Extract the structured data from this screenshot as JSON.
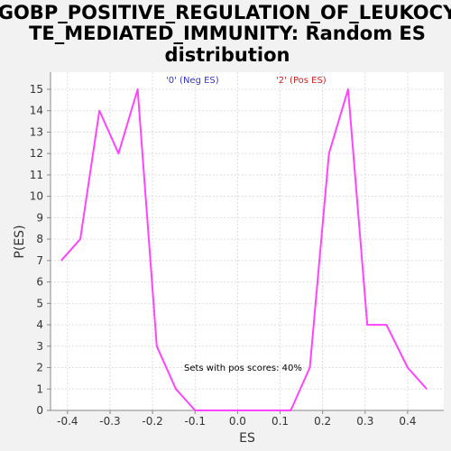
{
  "chart_data": {
    "type": "line",
    "title_lines": [
      "GOBP_POSITIVE_REGULATION_OF_LEUKOCY",
      "TE_MEDIATED_IMMUNITY: Random ES",
      "distribution"
    ],
    "xlabel": "ES",
    "ylabel": "P(ES)",
    "xlim": [
      -0.44,
      0.485
    ],
    "ylim": [
      0,
      15.8
    ],
    "x_ticks": [
      -0.4,
      -0.3,
      -0.2,
      -0.1,
      0.0,
      0.1,
      0.2,
      0.3,
      0.4
    ],
    "x_tick_labels": [
      "-0.4",
      "-0.3",
      "-0.2",
      "-0.1",
      "0.0",
      "0.1",
      "0.2",
      "0.3",
      "0.4"
    ],
    "y_ticks": [
      0,
      1,
      2,
      3,
      4,
      5,
      6,
      7,
      8,
      9,
      10,
      11,
      12,
      13,
      14,
      15
    ],
    "y_tick_labels": [
      "0",
      "1",
      "2",
      "3",
      "4",
      "5",
      "6",
      "7",
      "8",
      "9",
      "10",
      "11",
      "12",
      "13",
      "14",
      "15"
    ],
    "grid": true,
    "legend": [
      {
        "label": "'0' (Neg ES)",
        "color": "#3333cc"
      },
      {
        "label": "'2' (Pos ES)",
        "color": "#cc2222"
      }
    ],
    "annotation": "Sets with pos scores: 40%",
    "series": [
      {
        "color": "#ff44ff",
        "points": [
          [
            -0.415,
            7
          ],
          [
            -0.37,
            8
          ],
          [
            -0.325,
            14
          ],
          [
            -0.28,
            12
          ],
          [
            -0.235,
            15
          ],
          [
            -0.19,
            3
          ],
          [
            -0.145,
            1
          ],
          [
            -0.1,
            0
          ],
          [
            -0.055,
            0
          ],
          [
            -0.01,
            0
          ],
          [
            0.035,
            0
          ],
          [
            0.08,
            0
          ],
          [
            0.125,
            0
          ],
          [
            0.17,
            2
          ],
          [
            0.215,
            12
          ],
          [
            0.26,
            15
          ],
          [
            0.305,
            4
          ],
          [
            0.35,
            4
          ],
          [
            0.4,
            2
          ],
          [
            0.445,
            1
          ]
        ]
      }
    ]
  }
}
